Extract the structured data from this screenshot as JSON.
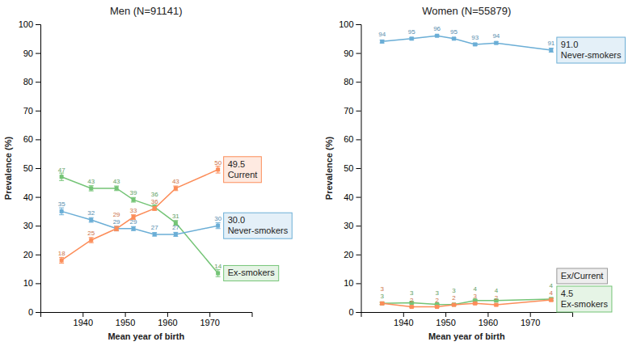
{
  "chart_data": [
    {
      "type": "line",
      "title": "Men (N=91141)",
      "x_label": "Mean year of birth",
      "y_label": "Prevalence (%)",
      "x": [
        1935,
        1942,
        1948,
        1952,
        1957,
        1962,
        1972
      ],
      "xlim": [
        1930,
        1980
      ],
      "xticks": [
        1940,
        1950,
        1960,
        1970
      ],
      "ylim": [
        0,
        100
      ],
      "yticks": [
        0,
        10,
        20,
        30,
        40,
        50,
        60,
        70,
        80,
        90,
        100
      ],
      "grid": false,
      "data_labels": true,
      "marker": "square",
      "series": [
        {
          "name": "Ex-smokers",
          "color": "#74c476",
          "values": [
            47.0,
            43.0,
            43.0,
            39.0,
            36.5,
            31.0,
            13.5
          ],
          "value_labels": [
            "47",
            "43",
            "43",
            "39",
            "36",
            "31",
            "14"
          ],
          "errors": [
            1.3,
            0.9,
            0.8,
            0.8,
            0.8,
            0.8,
            1.2
          ]
        },
        {
          "name": "Never-smokers",
          "color": "#6baed6",
          "values": [
            35.0,
            32.0,
            29.0,
            29.0,
            27.0,
            27.0,
            30.0
          ],
          "value_labels": [
            "35",
            "32",
            "29",
            "29",
            "27",
            "27",
            "30"
          ],
          "errors": [
            1.2,
            0.8,
            0.8,
            0.7,
            0.6,
            0.7,
            1.0
          ],
          "end_label": "30.0"
        },
        {
          "name": "Current",
          "color": "#fc8d59",
          "values": [
            18.0,
            25.0,
            29.0,
            33.0,
            36.0,
            43.0,
            49.5
          ],
          "value_labels": [
            "18",
            "25",
            "29",
            "33",
            "36",
            "43",
            "50"
          ],
          "errors": [
            1.0,
            0.9,
            0.8,
            0.8,
            0.7,
            0.8,
            1.2
          ],
          "end_label": "49.5"
        }
      ]
    },
    {
      "type": "line",
      "title": "Women (N=55879)",
      "x_label": "Mean year of birth",
      "y_label": "Prevalence (%)",
      "x": [
        1935,
        1942,
        1948,
        1952,
        1957,
        1962,
        1975
      ],
      "xlim": [
        1930,
        1980
      ],
      "xticks": [
        1940,
        1950,
        1960,
        1970
      ],
      "ylim": [
        0,
        100
      ],
      "yticks": [
        0,
        10,
        20,
        30,
        40,
        50,
        60,
        70,
        80,
        90,
        100
      ],
      "grid": false,
      "data_labels": true,
      "marker": "square",
      "series": [
        {
          "name": "Ex-smokers",
          "color": "#74c476",
          "values": [
            3.0,
            3.2,
            2.7,
            2.6,
            4.0,
            4.0,
            4.5
          ],
          "value_labels": [
            "3",
            "3",
            "3",
            "3",
            "4",
            "4",
            "4"
          ],
          "errors": [
            0.4,
            0.4,
            0.3,
            0.3,
            0.4,
            0.4,
            0.5
          ],
          "end_label": "4.5"
        },
        {
          "name": "Never-smokers",
          "color": "#6baed6",
          "values": [
            94.0,
            95.0,
            96.0,
            95.0,
            93.0,
            93.5,
            91.0
          ],
          "value_labels": [
            "94",
            "95",
            "96",
            "95",
            "93",
            "94",
            "91"
          ],
          "errors": [
            0.5,
            0.4,
            0.3,
            0.3,
            0.4,
            0.4,
            0.7
          ],
          "end_label": "91.0"
        },
        {
          "color": "#fc8d59",
          "values": [
            3.0,
            1.8,
            1.8,
            2.5,
            3.0,
            2.5,
            4.2
          ],
          "value_labels": [
            "3",
            "2",
            "2",
            "2",
            "3",
            "2",
            "4"
          ],
          "errors": [
            0.4,
            0.3,
            0.2,
            0.3,
            0.3,
            0.3,
            0.5
          ]
        }
      ],
      "annotations": [
        {
          "text": "Ex/Current",
          "x": 1975,
          "y": 4.5
        }
      ]
    }
  ]
}
